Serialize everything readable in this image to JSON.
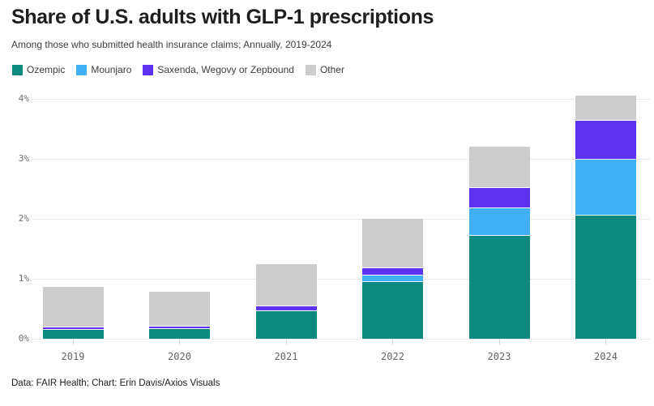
{
  "header": {
    "title": "Share of U.S. adults with GLP-1 prescriptions",
    "subtitle": "Among those who submitted health insurance claims; Annually, 2019-2024"
  },
  "footer": {
    "credit": "Data: FAIR Health; Chart: Erin Davis/Axios Visuals"
  },
  "chart_data": {
    "type": "bar",
    "stacked": true,
    "title": "Share of U.S. adults with GLP-1 prescriptions",
    "subtitle": "Among those who submitted health insurance claims; Annually, 2019-2024",
    "categories": [
      "2019",
      "2020",
      "2021",
      "2022",
      "2023",
      "2024"
    ],
    "series": [
      {
        "name": "Ozempic",
        "color": "#0d8a80",
        "values": [
          0.15,
          0.16,
          0.46,
          0.94,
          1.72,
          2.06
        ]
      },
      {
        "name": "Mounjaro",
        "color": "#41b1f7",
        "values": [
          0,
          0,
          0,
          0.11,
          0.45,
          0.92
        ]
      },
      {
        "name": "Saxenda, Wegovy or Zepbound",
        "color": "#5b33f1",
        "values": [
          0.04,
          0.04,
          0.08,
          0.13,
          0.34,
          0.66
        ]
      },
      {
        "name": "Other",
        "color": "#cdcdcd",
        "values": [
          0.68,
          0.59,
          0.7,
          0.82,
          0.69,
          0.41
        ]
      }
    ],
    "stack_totals": [
      0.87,
      0.79,
      1.24,
      2.0,
      3.2,
      4.05
    ],
    "unit": "%",
    "yticks": [
      {
        "value": 0,
        "label": "0%"
      },
      {
        "value": 1,
        "label": "1%"
      },
      {
        "value": 2,
        "label": "2%"
      },
      {
        "value": 3,
        "label": "3%"
      },
      {
        "value": 4,
        "label": "4%"
      }
    ],
    "ylim": [
      0,
      4.3
    ],
    "xlabel": "",
    "ylabel": "",
    "grid": true,
    "legend_position": "top-left"
  }
}
